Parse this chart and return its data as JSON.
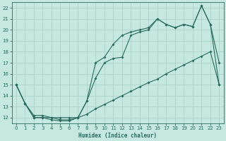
{
  "xlabel": "Humidex (Indice chaleur)",
  "bg_color": "#c5e8e0",
  "grid_color": "#a8cdc5",
  "line_color": "#2a6b5e",
  "xlim": [
    -0.5,
    23.5
  ],
  "ylim": [
    11.5,
    22.5
  ],
  "xticks": [
    0,
    1,
    2,
    3,
    4,
    5,
    6,
    7,
    8,
    9,
    10,
    11,
    12,
    13,
    14,
    15,
    16,
    17,
    18,
    19,
    20,
    21,
    22,
    23
  ],
  "yticks": [
    12,
    13,
    14,
    15,
    16,
    17,
    18,
    19,
    20,
    21,
    22
  ],
  "line1_upper": [
    [
      0,
      15.0
    ],
    [
      1,
      13.3
    ],
    [
      2,
      12.0
    ],
    [
      3,
      12.0
    ],
    [
      4,
      11.8
    ],
    [
      5,
      11.7
    ],
    [
      6,
      11.7
    ],
    [
      7,
      12.0
    ],
    [
      8,
      13.5
    ],
    [
      9,
      15.6
    ],
    [
      10,
      17.0
    ],
    [
      11,
      17.4
    ],
    [
      12,
      17.5
    ],
    [
      13,
      19.5
    ],
    [
      14,
      19.8
    ],
    [
      15,
      20.0
    ],
    [
      16,
      21.0
    ],
    [
      17,
      20.5
    ],
    [
      18,
      20.2
    ],
    [
      19,
      20.5
    ],
    [
      20,
      20.3
    ],
    [
      21,
      22.2
    ],
    [
      22,
      20.5
    ],
    [
      23,
      17.0
    ]
  ],
  "line2_mid": [
    [
      0,
      15.0
    ],
    [
      1,
      13.3
    ],
    [
      2,
      12.0
    ],
    [
      3,
      12.0
    ],
    [
      4,
      12.0
    ],
    [
      5,
      12.0
    ],
    [
      6,
      12.0
    ],
    [
      7,
      12.0
    ],
    [
      8,
      13.5
    ],
    [
      9,
      17.0
    ],
    [
      10,
      17.5
    ],
    [
      11,
      18.7
    ],
    [
      12,
      19.5
    ],
    [
      13,
      19.8
    ],
    [
      14,
      20.0
    ],
    [
      15,
      20.2
    ],
    [
      16,
      21.0
    ],
    [
      17,
      20.5
    ],
    [
      18,
      20.2
    ],
    [
      19,
      20.5
    ],
    [
      20,
      20.3
    ],
    [
      21,
      22.2
    ],
    [
      22,
      20.5
    ],
    [
      23,
      15.0
    ]
  ],
  "line3_low": [
    [
      0,
      15.0
    ],
    [
      1,
      13.3
    ],
    [
      2,
      12.2
    ],
    [
      3,
      12.2
    ],
    [
      4,
      12.0
    ],
    [
      5,
      11.8
    ],
    [
      6,
      11.8
    ],
    [
      7,
      12.0
    ],
    [
      8,
      12.3
    ],
    [
      9,
      12.8
    ],
    [
      10,
      13.2
    ],
    [
      11,
      13.6
    ],
    [
      12,
      14.0
    ],
    [
      13,
      14.4
    ],
    [
      14,
      14.8
    ],
    [
      15,
      15.2
    ],
    [
      16,
      15.5
    ],
    [
      17,
      16.0
    ],
    [
      18,
      16.4
    ],
    [
      19,
      16.8
    ],
    [
      20,
      17.2
    ],
    [
      21,
      17.6
    ],
    [
      22,
      18.0
    ],
    [
      23,
      15.0
    ]
  ]
}
